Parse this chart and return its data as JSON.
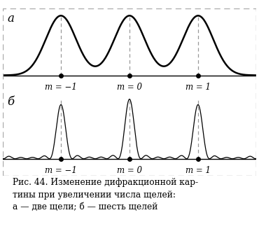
{
  "label_a": "a",
  "label_b": "б",
  "order_labels": [
    "m = −1",
    "m = 0",
    "m = 1"
  ],
  "centers": [
    -1.0,
    0.0,
    1.0
  ],
  "x_range": [
    -1.85,
    1.85
  ],
  "caption_line1": "Рис. 44. Изменение дифракционной кар-",
  "caption_line2": "тины при увеличении числа щелей:",
  "caption_line3": "а — две щели; б — шесть щелей",
  "background_color": "#ffffff",
  "line_color": "#000000",
  "dot_color": "#000000",
  "dashed_color": "#999999",
  "border_color": "#aaaaaa"
}
